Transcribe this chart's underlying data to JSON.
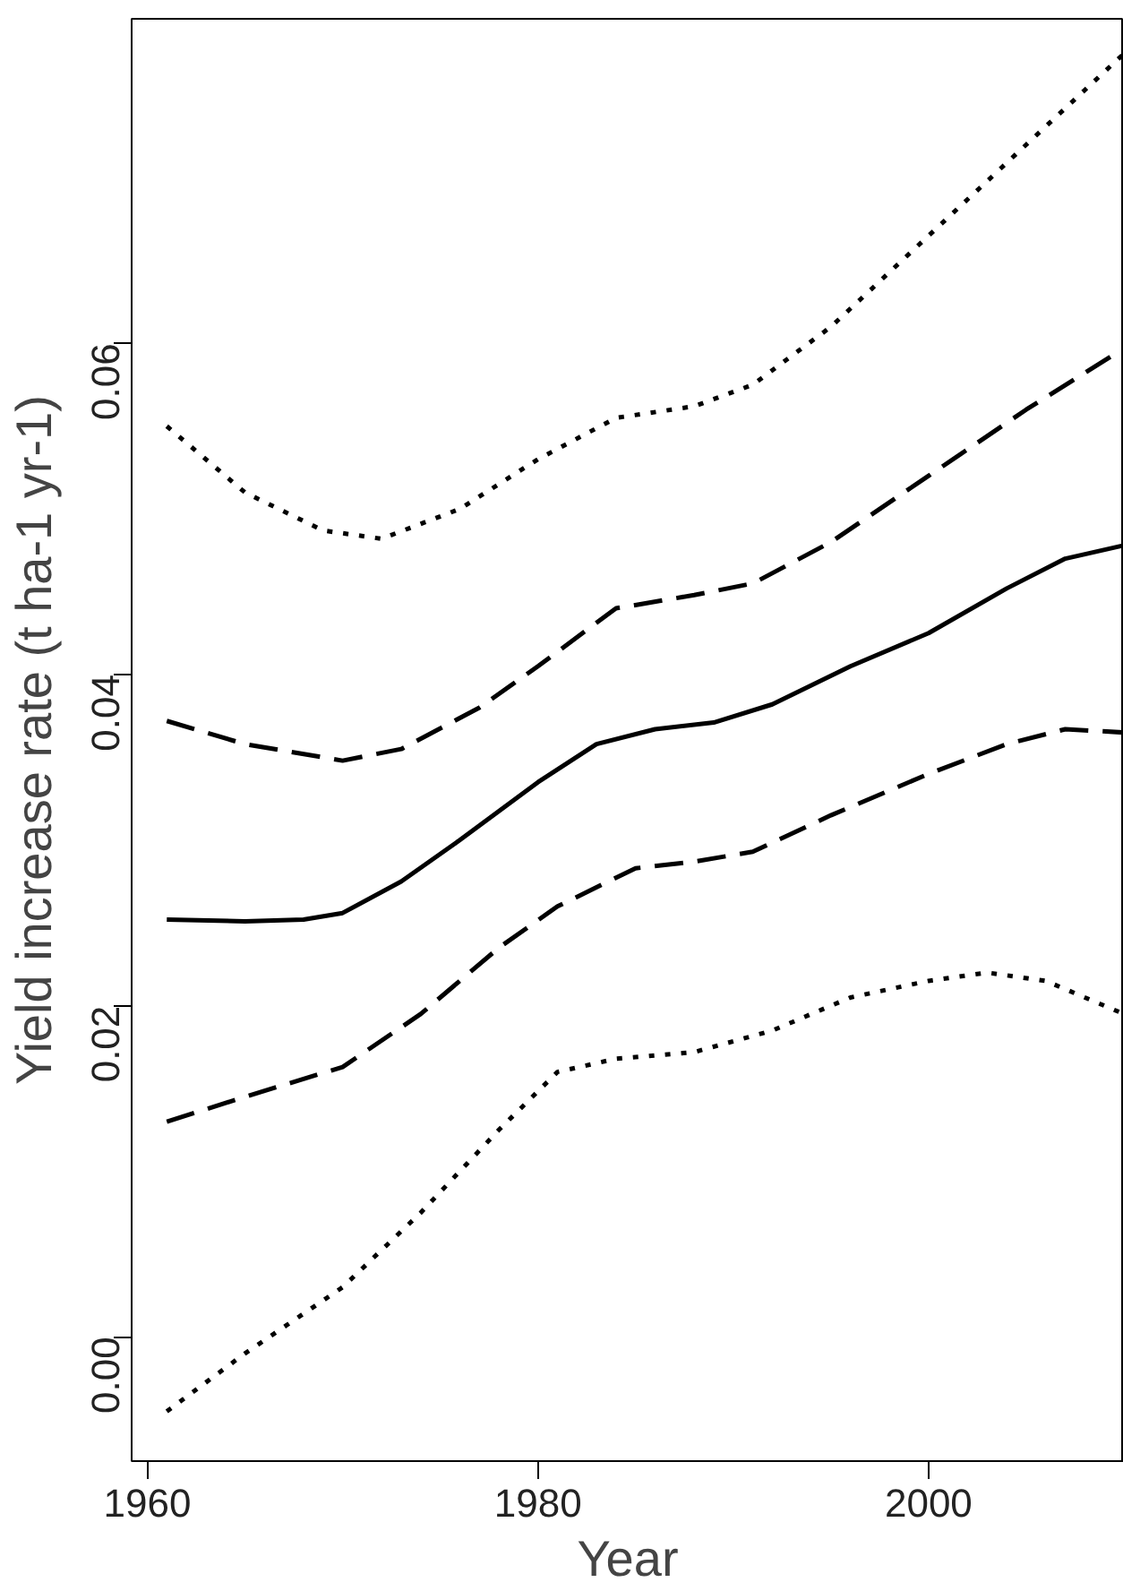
{
  "chart_data": {
    "type": "line",
    "xlabel": "Year",
    "ylabel": "Yield increase rate (t ha-1 yr-1)",
    "xlim": [
      1959.2,
      2010
    ],
    "ylim": [
      -0.0075,
      0.0796
    ],
    "xticks": [
      1960,
      1980,
      2000
    ],
    "yticks": [
      {
        "value": 0,
        "label": "0.00"
      },
      {
        "value": 0.02,
        "label": "0.02"
      },
      {
        "value": 0.04,
        "label": "0.04"
      },
      {
        "value": 0.06,
        "label": "0.06"
      }
    ],
    "grid": false,
    "series": [
      {
        "color": "#000000",
        "line_style": "solid",
        "x": [
          1961,
          1965,
          1968,
          1970,
          1973,
          1976,
          1980,
          1983,
          1986,
          1989,
          1992,
          1996,
          2000,
          2004,
          2007,
          2010
        ],
        "values": [
          0.0252,
          0.0251,
          0.0252,
          0.0256,
          0.0275,
          0.03,
          0.0335,
          0.0358,
          0.0367,
          0.0371,
          0.0382,
          0.0405,
          0.0425,
          0.0452,
          0.047,
          0.0478
        ]
      },
      {
        "color": "#000000",
        "line_style": "dashed",
        "x": [
          1961,
          1965,
          1970,
          1973,
          1977,
          1980,
          1984,
          1988,
          1991,
          1995,
          2000,
          2005,
          2010
        ],
        "values": [
          0.0372,
          0.0358,
          0.0348,
          0.0355,
          0.038,
          0.0405,
          0.044,
          0.0448,
          0.0455,
          0.048,
          0.052,
          0.056,
          0.0597
        ]
      },
      {
        "color": "#000000",
        "line_style": "dashed",
        "x": [
          1961,
          1965,
          1970,
          1974,
          1978,
          1981,
          1985,
          1988,
          1991,
          1995,
          2000,
          2004,
          2007,
          2010
        ],
        "values": [
          0.013,
          0.0145,
          0.0163,
          0.0195,
          0.0235,
          0.026,
          0.0283,
          0.0287,
          0.0293,
          0.0315,
          0.034,
          0.0358,
          0.0367,
          0.0365
        ]
      },
      {
        "color": "#000000",
        "line_style": "dotted",
        "x": [
          1961,
          1965,
          1969,
          1972,
          1976,
          1980,
          1984,
          1988,
          1991,
          1995,
          2000,
          2005,
          2010
        ],
        "values": [
          0.055,
          0.051,
          0.0487,
          0.0482,
          0.05,
          0.053,
          0.0555,
          0.0562,
          0.0575,
          0.061,
          0.0665,
          0.072,
          0.0775
        ]
      },
      {
        "color": "#000000",
        "line_style": "dotted",
        "x": [
          1961,
          1965,
          1970,
          1974,
          1978,
          1981,
          1984,
          1988,
          1992,
          1996,
          2000,
          2003,
          2006,
          2010
        ],
        "values": [
          -0.0045,
          -0.001,
          0.003,
          0.0075,
          0.0125,
          0.016,
          0.0168,
          0.0172,
          0.0185,
          0.0205,
          0.0215,
          0.022,
          0.0215,
          0.0195
        ]
      }
    ]
  }
}
